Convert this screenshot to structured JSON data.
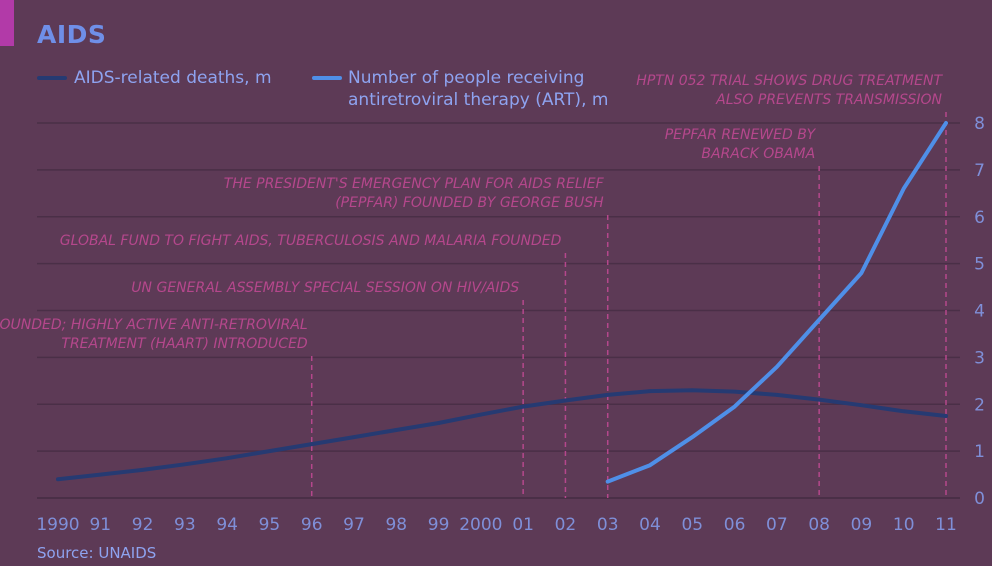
{
  "colors": {
    "background": "#5d3a56",
    "accent": "#b23aa8",
    "title": "#6f8fe8",
    "text": "#8ea3f0",
    "grid": "#4a2f47",
    "series_deaths": "#263a72",
    "series_art": "#4f8fe8",
    "annotation": "#b5478c",
    "axis_labels": "#7f8fd8"
  },
  "header": {
    "title": "AIDS",
    "source": "Source: UNAIDS"
  },
  "chart_data": {
    "type": "line",
    "title": "AIDS",
    "xlabel": "",
    "ylabel": "",
    "ylim": [
      0,
      8
    ],
    "y_ticks": [
      "0",
      "1",
      "2",
      "3",
      "4",
      "5",
      "6",
      "7",
      "8"
    ],
    "x_tick_labels": [
      "1990",
      "91",
      "92",
      "93",
      "94",
      "95",
      "96",
      "97",
      "98",
      "99",
      "2000",
      "01",
      "02",
      "03",
      "04",
      "05",
      "06",
      "07",
      "08",
      "09",
      "10",
      "11"
    ],
    "grid": true,
    "y_axis_position": "right",
    "legend_position": "top-left",
    "series": [
      {
        "name": "AIDS-related deaths, m",
        "x": [
          1990,
          1991,
          1992,
          1993,
          1994,
          1995,
          1996,
          1997,
          1998,
          1999,
          2000,
          2001,
          2002,
          2003,
          2004,
          2005,
          2006,
          2007,
          2008,
          2009,
          2010,
          2011
        ],
        "y": [
          0.4,
          0.5,
          0.6,
          0.72,
          0.85,
          1.0,
          1.15,
          1.3,
          1.45,
          1.6,
          1.78,
          1.95,
          2.08,
          2.2,
          2.28,
          2.3,
          2.27,
          2.2,
          2.1,
          1.98,
          1.85,
          1.75
        ]
      },
      {
        "name": "Number of people receiving antiretroviral therapy (ART), m",
        "x": [
          2003,
          2004,
          2005,
          2006,
          2007,
          2008,
          2009,
          2010,
          2011
        ],
        "y": [
          0.35,
          0.7,
          1.3,
          1.95,
          2.8,
          3.8,
          4.8,
          6.6,
          8.0
        ]
      }
    ],
    "annotations": [
      {
        "x": 1996,
        "lines": [
          "UNAIDS FOUNDED; HIGHLY ACTIVE ANTI-RETROVIRAL",
          "TREATMENT (HAART) INTRODUCED"
        ]
      },
      {
        "x": 2001,
        "lines": [
          "UN GENERAL ASSEMBLY SPECIAL SESSION ON HIV/AIDS"
        ]
      },
      {
        "x": 2002,
        "lines": [
          "GLOBAL FUND TO FIGHT AIDS, TUBERCULOSIS AND MALARIA FOUNDED"
        ]
      },
      {
        "x": 2003,
        "lines": [
          "THE PRESIDENT'S EMERGENCY PLAN FOR AIDS RELIEF",
          "(PEPFAR) FOUNDED BY GEORGE BUSH"
        ]
      },
      {
        "x": 2008,
        "lines": [
          "PEPFAR RENEWED BY",
          "BARACK OBAMA"
        ]
      },
      {
        "x": 2011,
        "lines": [
          "HPTN 052 TRIAL SHOWS DRUG TREATMENT",
          "ALSO PREVENTS TRANSMISSION"
        ]
      }
    ]
  }
}
